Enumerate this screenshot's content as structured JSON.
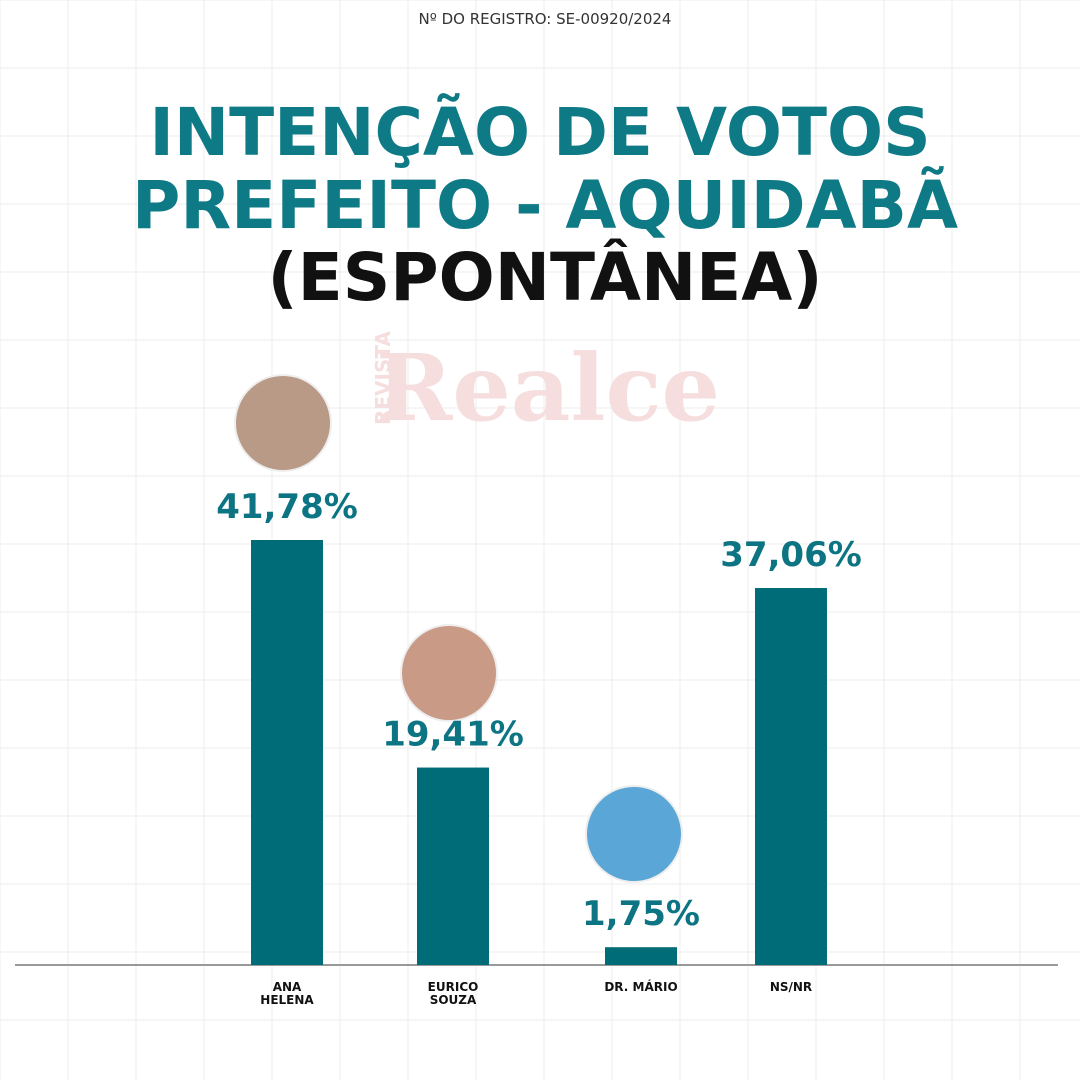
{
  "registro": "Nº DO REGISTRO: SE-00920/2024",
  "watermark": {
    "small": "REVISTA",
    "big": "Realce"
  },
  "chart_data": {
    "type": "bar",
    "title": [
      "INTENÇÃO DE VOTOS",
      "PREFEITO - AQUIDABÃ",
      "(ESPONTÂNEA)"
    ],
    "categories": [
      "ANA\nHELENA",
      "EURICO\nSOUZA",
      "DR. MÁRIO",
      "NS/NR"
    ],
    "values": [
      41.78,
      19.41,
      1.75,
      37.06
    ],
    "value_labels": [
      "41,78%",
      "19,41%",
      "1,75%",
      "37,06%"
    ],
    "color": "#006c78"
  }
}
